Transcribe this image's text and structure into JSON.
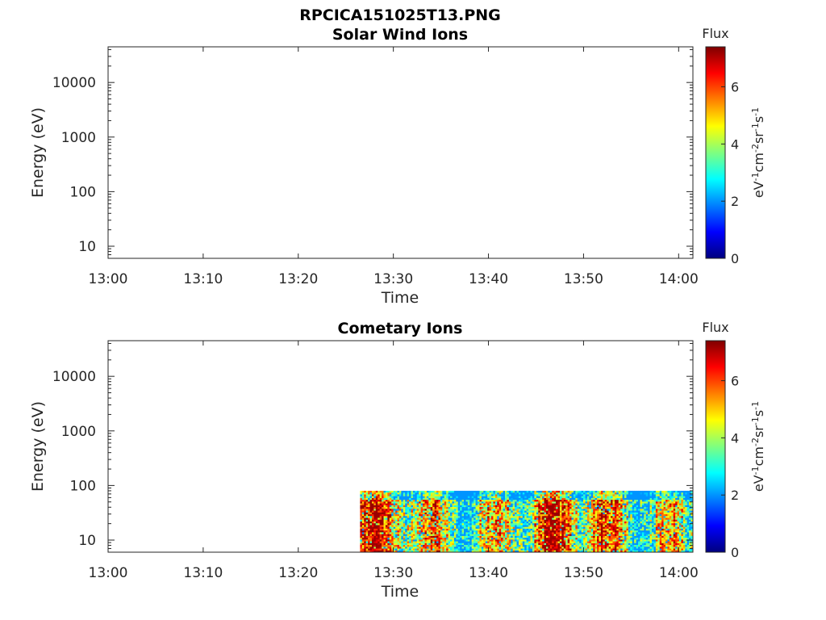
{
  "figure": {
    "title": "RPCICA151025T13.PNG"
  },
  "colormap": {
    "name": "jet",
    "stops": [
      "#00007f",
      "#0000ff",
      "#007fff",
      "#00ffff",
      "#7fff7f",
      "#ffff00",
      "#ff7f00",
      "#ff0000",
      "#7f0000"
    ]
  },
  "chart_data": [
    {
      "type": "heatmap",
      "title": "Solar Wind Ions",
      "xlabel": "Time",
      "ylabel": "Energy (eV)",
      "xticks": [
        "13:00",
        "13:10",
        "13:20",
        "13:30",
        "13:40",
        "13:50",
        "14:00"
      ],
      "xlim_minutes": [
        0,
        61.5
      ],
      "yscale": "log",
      "ylim": [
        6,
        45000
      ],
      "yticks": [
        {
          "value": 10,
          "label": "10"
        },
        {
          "value": 100,
          "label": "100"
        },
        {
          "value": 1000,
          "label": "1000"
        },
        {
          "value": 10000,
          "label": "10000"
        }
      ],
      "colorbar": {
        "label": "Flux",
        "unit": "eV-1cm-2sr-1s-1",
        "range": [
          0,
          7.4
        ],
        "ticks": [
          {
            "value": 0,
            "label": "0"
          },
          {
            "value": 2,
            "label": "2"
          },
          {
            "value": 4,
            "label": "4"
          },
          {
            "value": 6,
            "label": "6"
          }
        ]
      },
      "data_blocks": []
    },
    {
      "type": "heatmap",
      "title": "Cometary Ions",
      "xlabel": "Time",
      "ylabel": "Energy (eV)",
      "xticks": [
        "13:00",
        "13:10",
        "13:20",
        "13:30",
        "13:40",
        "13:50",
        "14:00"
      ],
      "xlim_minutes": [
        0,
        61.5
      ],
      "yscale": "log",
      "ylim": [
        6,
        45000
      ],
      "yticks": [
        {
          "value": 10,
          "label": "10"
        },
        {
          "value": 100,
          "label": "100"
        },
        {
          "value": 1000,
          "label": "1000"
        },
        {
          "value": 10000,
          "label": "10000"
        }
      ],
      "colorbar": {
        "label": "Flux",
        "unit": "eV-1cm-2sr-1s-1",
        "range": [
          0,
          7.4
        ],
        "ticks": [
          {
            "value": 0,
            "label": "0"
          },
          {
            "value": 2,
            "label": "2"
          },
          {
            "value": 4,
            "label": "4"
          },
          {
            "value": 6,
            "label": "6"
          }
        ]
      },
      "data_blocks": [
        {
          "t_start": 26.5,
          "t_end": 61.5,
          "e_min": 6,
          "e_max": 80,
          "flux_range": [
            2,
            7.2
          ],
          "note": "dense ion flux from ~13:26 onward, energies below ~80 eV"
        }
      ]
    }
  ]
}
